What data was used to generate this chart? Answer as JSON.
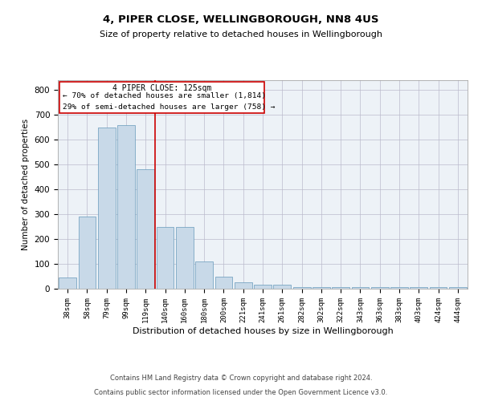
{
  "title1": "4, PIPER CLOSE, WELLINGBOROUGH, NN8 4US",
  "title2": "Size of property relative to detached houses in Wellingborough",
  "xlabel": "Distribution of detached houses by size in Wellingborough",
  "ylabel": "Number of detached properties",
  "categories": [
    "38sqm",
    "58sqm",
    "79sqm",
    "99sqm",
    "119sqm",
    "140sqm",
    "160sqm",
    "180sqm",
    "200sqm",
    "221sqm",
    "241sqm",
    "261sqm",
    "282sqm",
    "302sqm",
    "322sqm",
    "343sqm",
    "363sqm",
    "383sqm",
    "403sqm",
    "424sqm",
    "444sqm"
  ],
  "values": [
    45,
    290,
    650,
    660,
    480,
    250,
    250,
    110,
    50,
    25,
    15,
    15,
    8,
    5,
    8,
    8,
    5,
    5,
    5,
    5,
    5
  ],
  "bar_color": "#c8d9e8",
  "bar_edge_color": "#6699bb",
  "grid_color": "#bbbbcc",
  "bg_color": "#edf2f7",
  "red_line_x": 4.48,
  "annotation_text1": "4 PIPER CLOSE: 125sqm",
  "annotation_text2": "← 70% of detached houses are smaller (1,814)",
  "annotation_text3": "29% of semi-detached houses are larger (758) →",
  "footer1": "Contains HM Land Registry data © Crown copyright and database right 2024.",
  "footer2": "Contains public sector information licensed under the Open Government Licence v3.0.",
  "ylim_max": 840,
  "yticks": [
    0,
    100,
    200,
    300,
    400,
    500,
    600,
    700,
    800
  ]
}
